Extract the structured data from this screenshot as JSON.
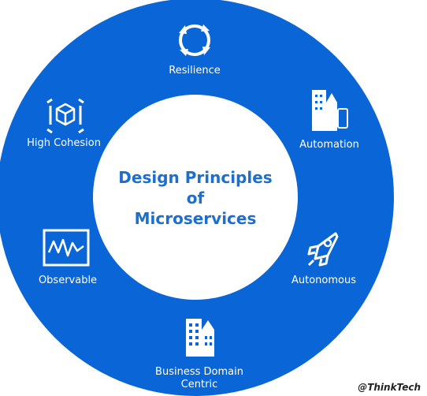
{
  "title": {
    "line1": "Design Principles",
    "line2": "of",
    "line3": "Microservices"
  },
  "principles": [
    {
      "label": "Resilience",
      "icon": "refresh-cycle-icon"
    },
    {
      "label": "Automation",
      "icon": "buildings-devices-icon"
    },
    {
      "label": "Autonomous",
      "icon": "rocket-icon"
    },
    {
      "label_line1": "Business Domain",
      "label_line2": "Centric",
      "icon": "city-buildings-icon"
    },
    {
      "label": "Observable",
      "icon": "monitor-waveform-icon"
    },
    {
      "label": "High Cohesion",
      "icon": "cube-icon"
    }
  ],
  "watermark": "@ThinkTech",
  "colors": {
    "ring": "#0a66d6",
    "center": "#ffffff",
    "title": "#1a6fd0",
    "icon": "#ffffff"
  }
}
